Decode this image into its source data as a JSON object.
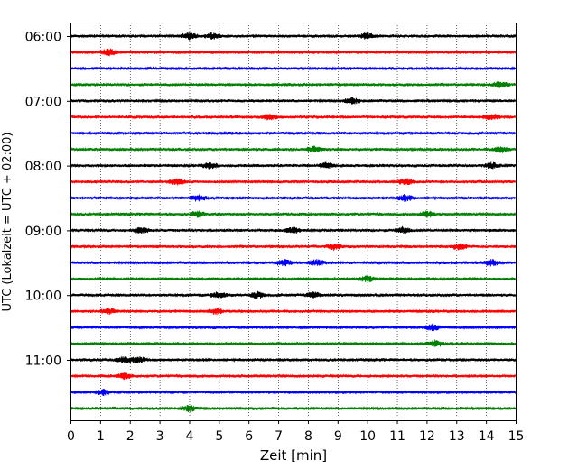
{
  "chart_data": {
    "type": "line",
    "title": "",
    "xlabel": "Zeit  [min]",
    "ylabel": "UTC (Lokalzeit = UTC + 02:00)",
    "xlim": [
      0,
      15
    ],
    "x_ticks": [
      "0",
      "1",
      "2",
      "3",
      "4",
      "5",
      "6",
      "7",
      "8",
      "9",
      "10",
      "11",
      "12",
      "13",
      "14",
      "15"
    ],
    "y_ticks": [
      "06:00",
      "07:00",
      "08:00",
      "09:00",
      "10:00",
      "11:00"
    ],
    "grid": "vertical dotted lines at each minute",
    "trace_interval_min": 15,
    "first_trace": "06:00",
    "colors": [
      "#000000",
      "#ff0000",
      "#0000ff",
      "#008000"
    ],
    "traces": [
      {
        "start": "06:00",
        "color": "#000000",
        "bursts": [
          4,
          4.8,
          10
        ]
      },
      {
        "start": "06:15",
        "color": "#ff0000",
        "bursts": [
          1.3
        ]
      },
      {
        "start": "06:30",
        "color": "#0000ff",
        "bursts": []
      },
      {
        "start": "06:45",
        "color": "#008000",
        "bursts": [
          14.5
        ]
      },
      {
        "start": "07:00",
        "color": "#000000",
        "bursts": [
          9.5
        ]
      },
      {
        "start": "07:15",
        "color": "#ff0000",
        "bursts": [
          6.7,
          14.2
        ]
      },
      {
        "start": "07:30",
        "color": "#0000ff",
        "bursts": []
      },
      {
        "start": "07:45",
        "color": "#008000",
        "bursts": [
          8.2,
          14.5
        ]
      },
      {
        "start": "08:00",
        "color": "#000000",
        "bursts": [
          4.7,
          8.6,
          14.2
        ]
      },
      {
        "start": "08:15",
        "color": "#ff0000",
        "bursts": [
          3.6,
          11.3
        ]
      },
      {
        "start": "08:30",
        "color": "#0000ff",
        "bursts": [
          4.3,
          11.3
        ]
      },
      {
        "start": "08:45",
        "color": "#008000",
        "bursts": [
          4.3,
          12
        ]
      },
      {
        "start": "09:00",
        "color": "#000000",
        "bursts": [
          2.4,
          7.5,
          11.2
        ]
      },
      {
        "start": "09:15",
        "color": "#ff0000",
        "bursts": [
          8.9,
          13.1
        ]
      },
      {
        "start": "09:30",
        "color": "#0000ff",
        "bursts": [
          7.2,
          8.3,
          14.2
        ]
      },
      {
        "start": "09:45",
        "color": "#008000",
        "bursts": [
          10
        ]
      },
      {
        "start": "10:00",
        "color": "#000000",
        "bursts": [
          5,
          6.3,
          8.2
        ]
      },
      {
        "start": "10:15",
        "color": "#ff0000",
        "bursts": [
          1.3,
          4.9
        ]
      },
      {
        "start": "10:30",
        "color": "#0000ff",
        "bursts": [
          12.2
        ]
      },
      {
        "start": "10:45",
        "color": "#008000",
        "bursts": [
          12.3
        ]
      },
      {
        "start": "11:00",
        "color": "#000000",
        "bursts": [
          1.8,
          2.3
        ]
      },
      {
        "start": "11:15",
        "color": "#ff0000",
        "bursts": [
          1.8
        ]
      },
      {
        "start": "11:30",
        "color": "#0000ff",
        "bursts": [
          1.1
        ]
      },
      {
        "start": "11:45",
        "color": "#008000",
        "bursts": [
          4
        ]
      }
    ]
  }
}
